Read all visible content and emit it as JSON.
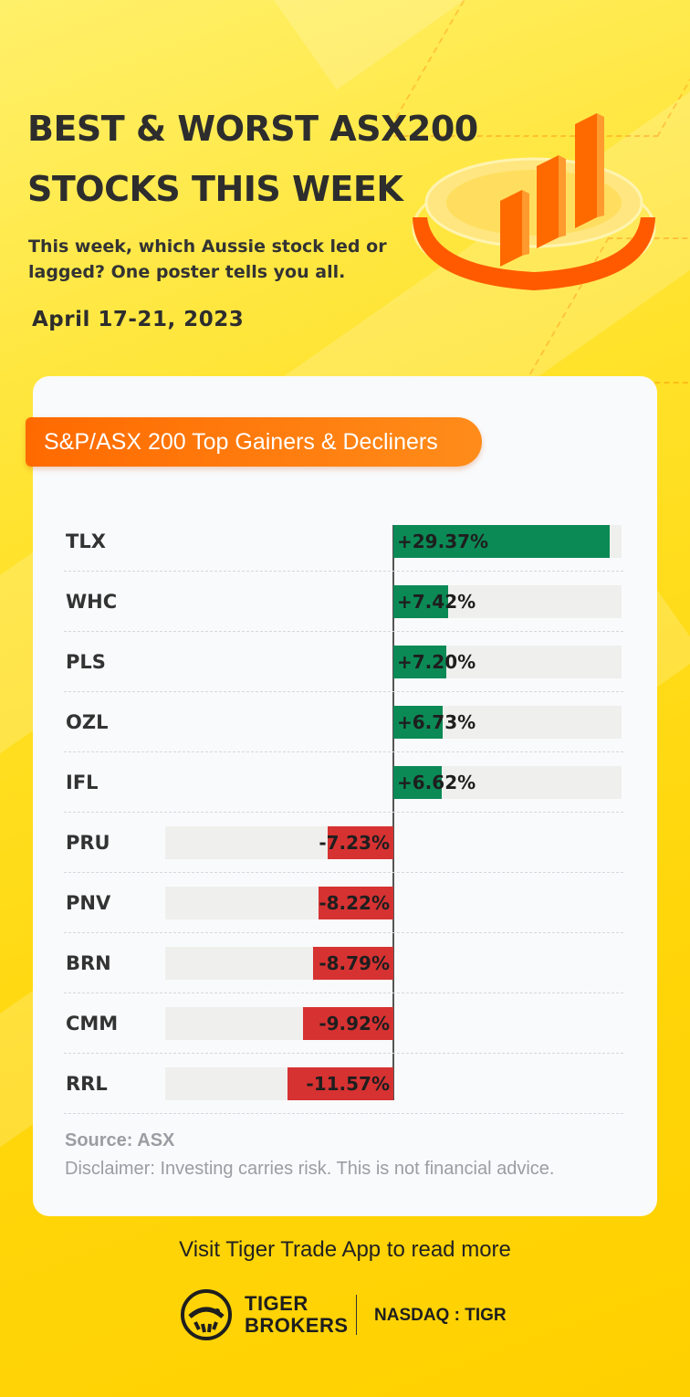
{
  "header": {
    "title": "BEST & WORST ASX200 STOCKS THIS WEEK",
    "subtitle": "This week, which Aussie stock led or lagged? One poster tells you all.",
    "date": "April 17-21, 2023"
  },
  "card": {
    "pill_label": "S&P/ASX 200 Top Gainers & Decliners",
    "source": "Source: ASX",
    "disclaimer": "Disclaimer: Investing carries risk. This is not financial advice."
  },
  "chart_data": {
    "type": "bar",
    "orientation": "horizontal",
    "categories": [
      "TLX",
      "WHC",
      "PLS",
      "OZL",
      "IFL",
      "PRU",
      "PNV",
      "BRN",
      "CMM",
      "RRL"
    ],
    "values": [
      29.37,
      7.42,
      7.2,
      6.73,
      6.62,
      -7.23,
      -8.22,
      -8.79,
      -9.92,
      -11.57
    ],
    "value_labels": [
      "+29.37%",
      "+7.42%",
      "+7.20%",
      "+6.73%",
      "+6.62%",
      "-7.23%",
      "-8.22%",
      "-8.79%",
      "-9.92%",
      "-11.57%"
    ],
    "colors": {
      "positive": "#0b8a56",
      "negative": "#d63232",
      "track": "#efefed"
    },
    "title": "S&P/ASX 200 Top Gainers & Decliners"
  },
  "footer": {
    "visit_text": "Visit Tiger Trade App to read more",
    "brand_line1": "TIGER",
    "brand_line2": "BROKERS",
    "ticker": "NASDAQ : TIGR",
    "logo_icon": "tiger-logo-icon"
  },
  "colors": {
    "accent": "#ff6a00",
    "background": "#ffe22a",
    "card": "#f9fafb"
  }
}
